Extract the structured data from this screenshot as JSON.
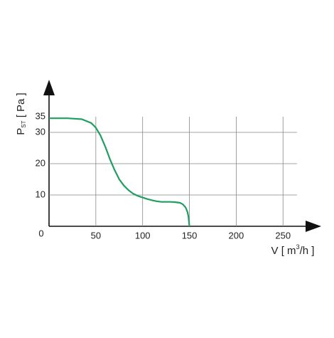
{
  "chart_data": {
    "type": "line",
    "y_label": {
      "main": "P",
      "sub": "ST",
      "rest": " [ Pa ]"
    },
    "x_label": {
      "main": "V [ m",
      "sup": "3",
      "rest": "/h ]"
    },
    "x": [
      0,
      20,
      35,
      45,
      50,
      55,
      60,
      65,
      70,
      75,
      80,
      85,
      90,
      95,
      100,
      105,
      110,
      115,
      120,
      125,
      130,
      135,
      140,
      143,
      146,
      148,
      149,
      150
    ],
    "series": [
      {
        "color": "#1f9e62",
        "values": [
          34.5,
          34.5,
          34.2,
          33,
          31.5,
          29,
          25.5,
          21.5,
          18,
          15,
          13,
          11.5,
          10.4,
          9.7,
          9.2,
          8.7,
          8.3,
          8,
          7.8,
          7.8,
          7.8,
          7.7,
          7.5,
          7,
          6,
          4.5,
          3,
          0
        ]
      }
    ],
    "xlim": [
      0,
      265
    ],
    "ylim": [
      0,
      35
    ],
    "xticks": [
      0,
      50,
      100,
      150,
      200,
      250
    ],
    "yticks": [
      10,
      20,
      30,
      35
    ],
    "grid": true
  }
}
